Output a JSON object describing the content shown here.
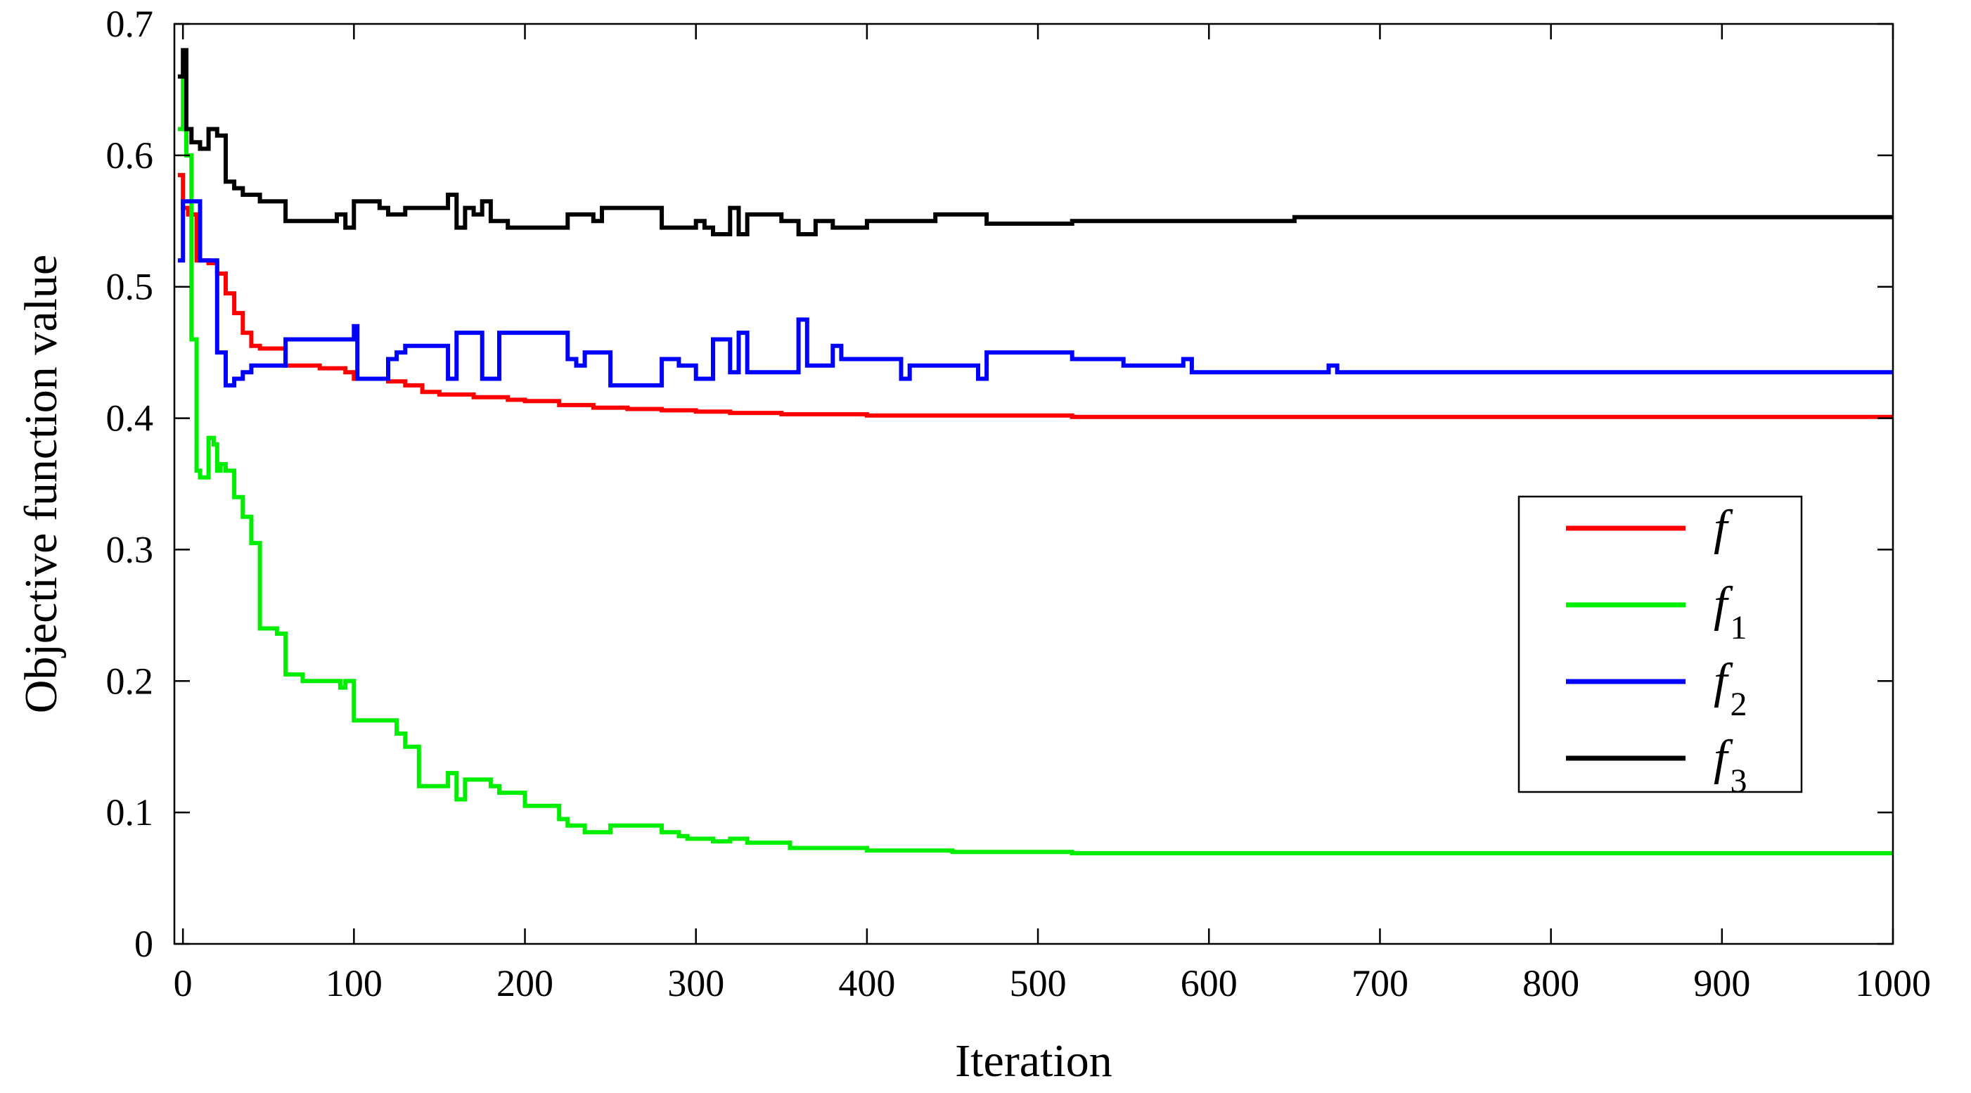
{
  "chart_data": {
    "type": "line",
    "title": "",
    "xlabel": "Iteration",
    "ylabel": "Objective function value",
    "xlim": [
      -5,
      1000
    ],
    "ylim": [
      0,
      0.7
    ],
    "xticks": [
      0,
      100,
      200,
      300,
      400,
      500,
      600,
      700,
      800,
      900,
      1000
    ],
    "xtick_labels": [
      "0",
      "100",
      "200",
      "300",
      "400",
      "500",
      "600",
      "700",
      "800",
      "900",
      "1000"
    ],
    "yticks": [
      0,
      0.1,
      0.2,
      0.3,
      0.4,
      0.5,
      0.6,
      0.7
    ],
    "ytick_labels": [
      "0",
      "0.1",
      "0.2",
      "0.3",
      "0.4",
      "0.5",
      "0.6",
      "0.7"
    ],
    "grid": false,
    "legend_position": "right-middle",
    "series": [
      {
        "name": "f",
        "label_main": "f",
        "label_sub": "",
        "color": "#ff0000",
        "step": true,
        "x": [
          -3,
          0,
          3,
          8,
          10,
          15,
          20,
          25,
          30,
          35,
          40,
          45,
          60,
          80,
          95,
          100,
          110,
          120,
          130,
          140,
          150,
          170,
          190,
          200,
          220,
          240,
          260,
          280,
          300,
          320,
          350,
          400,
          450,
          520,
          600,
          700,
          1000
        ],
        "y": [
          0.585,
          0.56,
          0.555,
          0.52,
          0.52,
          0.518,
          0.51,
          0.495,
          0.48,
          0.465,
          0.455,
          0.453,
          0.44,
          0.438,
          0.435,
          0.43,
          0.43,
          0.428,
          0.425,
          0.42,
          0.418,
          0.416,
          0.414,
          0.413,
          0.41,
          0.408,
          0.407,
          0.406,
          0.405,
          0.404,
          0.403,
          0.402,
          0.402,
          0.401,
          0.401,
          0.401,
          0.401
        ]
      },
      {
        "name": "f1",
        "label_main": "f",
        "label_sub": "1",
        "color": "#00ee00",
        "step": true,
        "x": [
          -3,
          0,
          2,
          5,
          8,
          10,
          15,
          18,
          20,
          22,
          25,
          30,
          35,
          40,
          45,
          55,
          60,
          70,
          80,
          92,
          95,
          100,
          105,
          115,
          125,
          130,
          138,
          150,
          155,
          160,
          165,
          180,
          185,
          195,
          200,
          220,
          225,
          235,
          250,
          280,
          290,
          295,
          300,
          310,
          315,
          320,
          330,
          355,
          360,
          380,
          400,
          420,
          450,
          500,
          520,
          600,
          700,
          1000
        ],
        "y": [
          0.62,
          0.67,
          0.6,
          0.46,
          0.36,
          0.355,
          0.385,
          0.38,
          0.36,
          0.365,
          0.36,
          0.34,
          0.325,
          0.305,
          0.24,
          0.236,
          0.205,
          0.2,
          0.2,
          0.195,
          0.2,
          0.17,
          0.17,
          0.17,
          0.16,
          0.15,
          0.12,
          0.12,
          0.13,
          0.11,
          0.125,
          0.12,
          0.115,
          0.115,
          0.105,
          0.095,
          0.09,
          0.085,
          0.09,
          0.085,
          0.082,
          0.08,
          0.08,
          0.078,
          0.078,
          0.08,
          0.077,
          0.073,
          0.073,
          0.073,
          0.071,
          0.071,
          0.07,
          0.07,
          0.069,
          0.069,
          0.069,
          0.069
        ]
      },
      {
        "name": "f2",
        "label_main": "f",
        "label_sub": "2",
        "color": "#0000ff",
        "step": true,
        "x": [
          -3,
          0,
          5,
          10,
          15,
          20,
          25,
          30,
          35,
          40,
          50,
          60,
          75,
          95,
          100,
          102,
          110,
          120,
          125,
          130,
          150,
          155,
          160,
          165,
          175,
          180,
          185,
          190,
          200,
          210,
          220,
          225,
          230,
          235,
          250,
          270,
          280,
          285,
          290,
          300,
          310,
          315,
          320,
          325,
          330,
          355,
          360,
          365,
          375,
          380,
          385,
          400,
          420,
          425,
          465,
          470,
          480,
          500,
          520,
          550,
          585,
          590,
          600,
          665,
          670,
          675,
          700,
          1000
        ],
        "y": [
          0.52,
          0.565,
          0.565,
          0.52,
          0.52,
          0.45,
          0.425,
          0.43,
          0.435,
          0.44,
          0.44,
          0.46,
          0.46,
          0.46,
          0.47,
          0.43,
          0.43,
          0.445,
          0.45,
          0.455,
          0.455,
          0.43,
          0.465,
          0.465,
          0.43,
          0.43,
          0.465,
          0.465,
          0.465,
          0.465,
          0.465,
          0.445,
          0.44,
          0.45,
          0.425,
          0.425,
          0.445,
          0.445,
          0.44,
          0.43,
          0.46,
          0.46,
          0.435,
          0.465,
          0.435,
          0.435,
          0.475,
          0.44,
          0.44,
          0.455,
          0.445,
          0.445,
          0.43,
          0.44,
          0.43,
          0.45,
          0.45,
          0.45,
          0.445,
          0.44,
          0.445,
          0.435,
          0.435,
          0.435,
          0.44,
          0.435,
          0.435,
          0.435
        ]
      },
      {
        "name": "f3",
        "label_main": "f",
        "label_sub": "3",
        "color": "#000000",
        "step": true,
        "x": [
          -3,
          0,
          2,
          5,
          10,
          15,
          20,
          25,
          30,
          35,
          45,
          55,
          60,
          70,
          85,
          90,
          95,
          100,
          105,
          115,
          120,
          125,
          130,
          150,
          155,
          160,
          162,
          165,
          170,
          175,
          180,
          190,
          195,
          200,
          220,
          225,
          240,
          245,
          260,
          275,
          280,
          300,
          305,
          310,
          320,
          325,
          330,
          350,
          360,
          370,
          380,
          400,
          420,
          440,
          465,
          470,
          490,
          500,
          520,
          550,
          600,
          650,
          670,
          700,
          1000
        ],
        "y": [
          0.66,
          0.68,
          0.62,
          0.61,
          0.605,
          0.62,
          0.615,
          0.58,
          0.575,
          0.57,
          0.565,
          0.565,
          0.55,
          0.55,
          0.55,
          0.555,
          0.545,
          0.565,
          0.565,
          0.56,
          0.555,
          0.555,
          0.56,
          0.56,
          0.57,
          0.545,
          0.545,
          0.56,
          0.555,
          0.565,
          0.55,
          0.545,
          0.545,
          0.545,
          0.545,
          0.555,
          0.55,
          0.56,
          0.56,
          0.56,
          0.545,
          0.55,
          0.545,
          0.54,
          0.56,
          0.54,
          0.555,
          0.55,
          0.54,
          0.55,
          0.545,
          0.55,
          0.55,
          0.555,
          0.555,
          0.548,
          0.548,
          0.548,
          0.55,
          0.55,
          0.55,
          0.553,
          0.553,
          0.553,
          0.553
        ]
      }
    ]
  }
}
